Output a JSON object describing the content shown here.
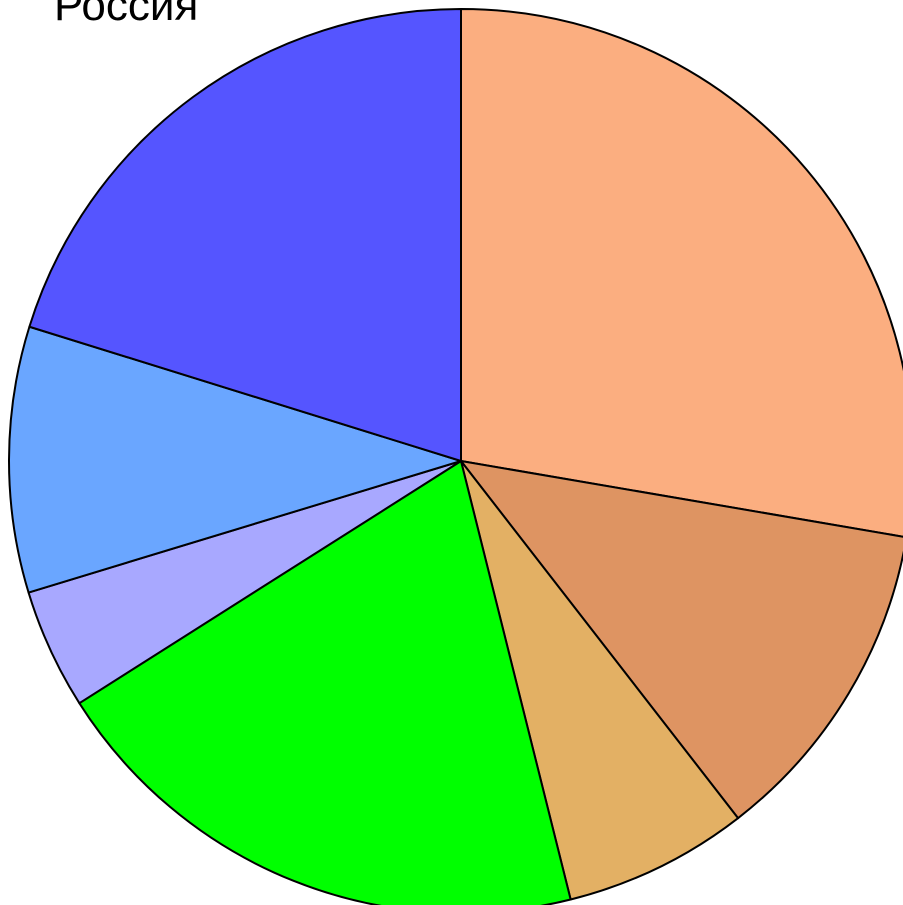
{
  "chart_data": {
    "type": "pie",
    "title": "Россия",
    "slices": [
      {
        "value": 27.7,
        "color": "#FBAE80"
      },
      {
        "value": 11.8,
        "color": "#DE9462"
      },
      {
        "value": 6.6,
        "color": "#E3B064"
      },
      {
        "value": 19.9,
        "color": "#00FF00"
      },
      {
        "value": 4.3,
        "color": "#A8A8FF"
      },
      {
        "value": 9.5,
        "color": "#6AA6FF"
      },
      {
        "value": 20.2,
        "color": "#5555FF"
      }
    ],
    "start_angle": "top",
    "direction": "clockwise",
    "legend": "none"
  }
}
